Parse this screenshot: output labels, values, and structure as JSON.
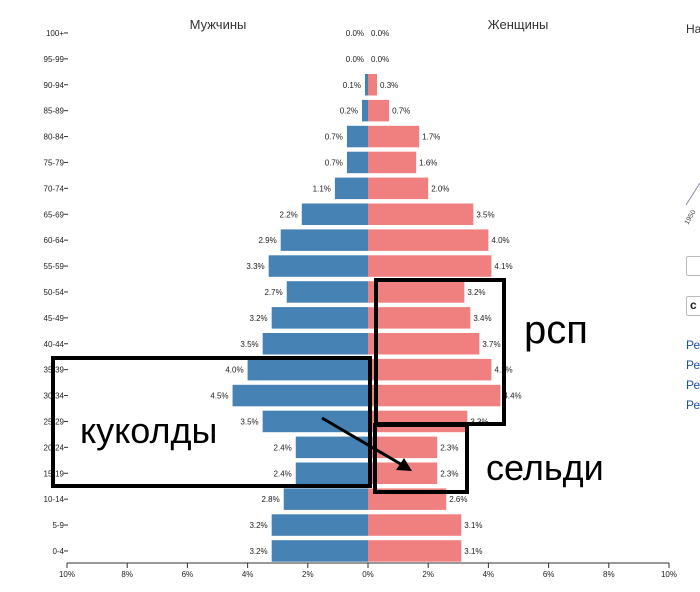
{
  "chart_data": {
    "type": "bar",
    "subtype": "population-pyramid",
    "left_title": "Мужчины",
    "right_title": "Женщины",
    "categories": [
      "100+",
      "95-99",
      "90-94",
      "85-89",
      "80-84",
      "75-79",
      "70-74",
      "65-69",
      "60-64",
      "55-59",
      "50-54",
      "45-49",
      "40-44",
      "35-39",
      "30-34",
      "25-29",
      "20-24",
      "15-19",
      "10-14",
      "5-9",
      "0-4"
    ],
    "series": [
      {
        "name": "Мужчины",
        "color": "#4682b4",
        "values": [
          0.0,
          0.0,
          0.1,
          0.2,
          0.7,
          0.7,
          1.1,
          2.2,
          2.9,
          3.3,
          2.7,
          3.2,
          3.5,
          4.0,
          4.5,
          3.5,
          2.4,
          2.4,
          2.8,
          3.2,
          3.2
        ],
        "labels": [
          "0.0%",
          "0.0%",
          "0.1%",
          "0.2%",
          "0.7%",
          "0.7%",
          "1.1%",
          "2.2%",
          "2.9%",
          "3.3%",
          "2.7%",
          "3.2%",
          "3.5%",
          "4.0%",
          "4.5%",
          "3.5%",
          "2.4%",
          "2.4%",
          "2.8%",
          "3.2%",
          "3.2%"
        ]
      },
      {
        "name": "Женщины",
        "color": "#f08080",
        "values": [
          0.0,
          0.0,
          0.3,
          0.7,
          1.7,
          1.6,
          2.0,
          3.5,
          4.0,
          4.1,
          3.2,
          3.4,
          3.7,
          4.1,
          4.4,
          3.3,
          2.3,
          2.3,
          2.6,
          3.1,
          3.1
        ],
        "labels": [
          "0.0%",
          "0.0%",
          "0.3%",
          "0.7%",
          "1.7%",
          "1.6%",
          "2.0%",
          "3.5%",
          "4.0%",
          "4.1%",
          "3.2%",
          "3.4%",
          "3.7%",
          "4.1%",
          "4.4%",
          "3.3%",
          "2.3%",
          "2.3%",
          "2.6%",
          "3.1%",
          "3.1%"
        ]
      }
    ],
    "xlim": [
      -10,
      10
    ],
    "x_ticks": [
      "10%",
      "8%",
      "6%",
      "4%",
      "2%",
      "0%",
      "2%",
      "4%",
      "6%",
      "8%",
      "10%"
    ],
    "grid": false,
    "annotations": [
      {
        "text": "куколды",
        "group": "20-24 to 35-39",
        "side": "male"
      },
      {
        "text": "рсп",
        "group": "25-29 to 50-54",
        "side": "female"
      },
      {
        "text": "сельди",
        "group": "15-19 to 20-24",
        "side": "female"
      }
    ]
  },
  "side_panel": {
    "top_text": "На",
    "year_label": "1950",
    "links": [
      "Ре",
      "Ре",
      "Ре",
      "Ре"
    ]
  }
}
